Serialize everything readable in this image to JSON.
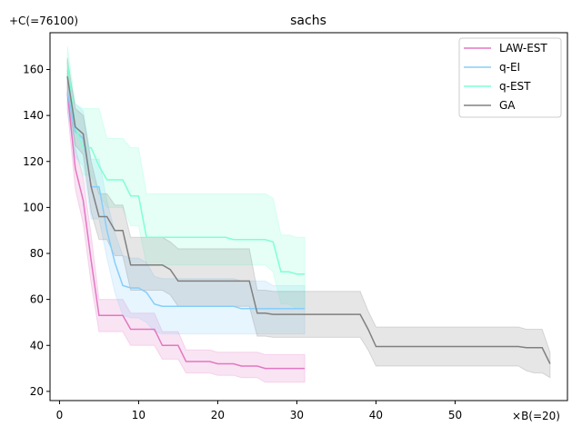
{
  "chart_data": {
    "type": "line",
    "title": "sachs",
    "x_offset_label": "×B(=20)",
    "y_offset_label": "+C(=76100)",
    "xlim": [
      -1.2,
      64.2
    ],
    "ylim": [
      16.0,
      176.0
    ],
    "x_ticks": [
      0,
      10,
      20,
      30,
      40,
      50
    ],
    "x_tick_labels": [
      "0",
      "10",
      "20",
      "30",
      "40",
      "50"
    ],
    "y_ticks": [
      20,
      40,
      60,
      80,
      100,
      120,
      140,
      160
    ],
    "y_tick_labels": [
      "20",
      "40",
      "60",
      "80",
      "100",
      "120",
      "140",
      "160"
    ],
    "legend_position": "top-right",
    "series": [
      {
        "name": "LAW-EST",
        "color": "#e377c2",
        "x": [
          1,
          2,
          3,
          4,
          5,
          6,
          7,
          8,
          9,
          10,
          11,
          12,
          13,
          14,
          15,
          16,
          17,
          18,
          19,
          20,
          21,
          22,
          23,
          24,
          25,
          26,
          27,
          28,
          29,
          30,
          31
        ],
        "y": [
          150,
          117,
          103,
          77,
          53,
          53,
          53,
          53,
          47,
          47,
          47,
          47,
          40,
          40,
          40,
          33,
          33,
          33,
          33,
          32,
          32,
          32,
          31,
          31,
          31,
          30,
          30,
          30,
          30,
          30,
          30
        ],
        "lower": [
          143,
          108,
          93,
          67,
          46,
          46,
          46,
          46,
          40,
          40,
          40,
          40,
          34,
          34,
          34,
          28,
          28,
          28,
          28,
          27,
          27,
          27,
          26,
          26,
          26,
          24,
          24,
          24,
          24,
          24,
          24
        ],
        "upper": [
          157,
          126,
          113,
          88,
          60,
          60,
          60,
          60,
          54,
          54,
          54,
          54,
          46,
          46,
          46,
          38,
          38,
          38,
          38,
          37,
          37,
          37,
          37,
          37,
          37,
          36,
          36,
          36,
          36,
          36,
          36
        ]
      },
      {
        "name": "q-EI",
        "color": "#87cefa",
        "x": [
          1,
          2,
          3,
          4,
          5,
          6,
          7,
          8,
          9,
          10,
          11,
          12,
          13,
          14,
          15,
          16,
          17,
          18,
          19,
          20,
          21,
          22,
          23,
          24,
          25,
          26,
          27,
          28,
          29,
          30,
          31
        ],
        "y": [
          150,
          133,
          130,
          109,
          109,
          90,
          76,
          66,
          65,
          65,
          63,
          58,
          57,
          57,
          57,
          57,
          57,
          57,
          57,
          57,
          57,
          57,
          56,
          56,
          56,
          56,
          56,
          56,
          56,
          56,
          56
        ],
        "lower": [
          142,
          122,
          118,
          95,
          95,
          78,
          63,
          53,
          52,
          52,
          50,
          46,
          45,
          45,
          45,
          45,
          45,
          45,
          45,
          45,
          45,
          45,
          45,
          45,
          45,
          45,
          45,
          45,
          45,
          45,
          45
        ],
        "upper": [
          160,
          145,
          142,
          121,
          121,
          103,
          89,
          79,
          78,
          78,
          76,
          70,
          69,
          69,
          69,
          69,
          69,
          69,
          69,
          69,
          69,
          69,
          68,
          68,
          68,
          68,
          66,
          66,
          66,
          66,
          66
        ]
      },
      {
        "name": "q-EST",
        "color": "#7fffd4",
        "x": [
          1,
          2,
          3,
          4,
          5,
          6,
          7,
          8,
          9,
          10,
          11,
          12,
          13,
          14,
          15,
          16,
          17,
          18,
          19,
          20,
          21,
          22,
          23,
          24,
          25,
          26,
          27,
          28,
          29,
          30,
          31
        ],
        "y": [
          163,
          135,
          126,
          126,
          118,
          112,
          112,
          112,
          105,
          105,
          87,
          87,
          87,
          87,
          87,
          87,
          87,
          87,
          87,
          87,
          87,
          86,
          86,
          86,
          86,
          86,
          85,
          72,
          72,
          71,
          71
        ],
        "lower": [
          156,
          125,
          114,
          114,
          106,
          100,
          100,
          100,
          92,
          92,
          75,
          75,
          75,
          75,
          75,
          75,
          75,
          75,
          75,
          75,
          75,
          75,
          75,
          75,
          75,
          75,
          72,
          58,
          58,
          56,
          56
        ],
        "upper": [
          170,
          145,
          143,
          143,
          143,
          130,
          130,
          130,
          126,
          126,
          106,
          106,
          106,
          106,
          106,
          106,
          106,
          106,
          106,
          106,
          106,
          106,
          106,
          106,
          106,
          106,
          104,
          88,
          88,
          87,
          87
        ]
      },
      {
        "name": "GA",
        "color": "#808080",
        "x": [
          1,
          2,
          3,
          4,
          5,
          6,
          7,
          8,
          9,
          10,
          11,
          12,
          13,
          14,
          15,
          16,
          17,
          18,
          19,
          20,
          21,
          22,
          23,
          24,
          25,
          26,
          27,
          28,
          29,
          30,
          31,
          32,
          33,
          34,
          35,
          36,
          37,
          38,
          39,
          40,
          41,
          42,
          43,
          44,
          45,
          46,
          47,
          48,
          49,
          50,
          51,
          52,
          53,
          54,
          55,
          56,
          57,
          58,
          59,
          60,
          61,
          62
        ],
        "y": [
          157,
          135,
          132,
          109,
          96,
          96,
          90,
          90,
          75,
          75,
          75,
          75,
          75,
          73,
          68,
          68,
          68,
          68,
          68,
          68,
          68,
          68,
          68,
          68,
          54,
          54,
          53.5,
          53.5,
          53.5,
          53.5,
          53.5,
          53.5,
          53.5,
          53.5,
          53.5,
          53.5,
          53.5,
          53.5,
          47,
          39.5,
          39.5,
          39.5,
          39.5,
          39.5,
          39.5,
          39.5,
          39.5,
          39.5,
          39.5,
          39.5,
          39.5,
          39.5,
          39.5,
          39.5,
          39.5,
          39.5,
          39.5,
          39.5,
          39.0,
          39.0,
          39.0,
          32
        ],
        "lower": [
          149,
          127,
          123,
          98,
          86,
          86,
          79,
          79,
          64,
          64,
          64,
          64,
          64,
          62,
          57,
          57,
          57,
          57,
          57,
          57,
          57,
          57,
          57,
          57,
          44,
          44,
          43.5,
          43.5,
          43.5,
          43.5,
          43.5,
          43.5,
          43.5,
          43.5,
          43.5,
          43.5,
          43.5,
          43.5,
          38,
          31,
          31,
          31,
          31,
          31,
          31,
          31,
          31,
          31,
          31,
          31,
          31,
          31,
          31,
          31,
          31,
          31,
          31,
          31,
          29,
          28,
          28,
          26
        ],
        "upper": [
          165,
          143,
          140,
          120,
          106,
          106,
          101,
          101,
          87,
          87,
          87,
          87,
          87,
          85,
          82,
          82,
          82,
          82,
          82,
          82,
          82,
          82,
          82,
          82,
          64,
          64,
          63.5,
          63.5,
          63.5,
          63.5,
          63.5,
          63.5,
          63.5,
          63.5,
          63.5,
          63.5,
          63.5,
          63.5,
          55,
          48,
          48,
          48,
          48,
          48,
          48,
          48,
          48,
          48,
          48,
          48,
          48,
          48,
          48,
          48,
          48,
          48,
          48,
          48,
          47,
          47,
          47,
          37
        ]
      }
    ]
  }
}
